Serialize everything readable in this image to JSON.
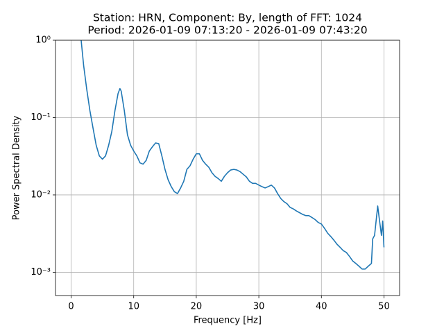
{
  "chart_data": {
    "type": "line",
    "title": "Station: HRN, Component: By, length of FFT: 1024",
    "subtitle": "Period: 2026-01-09 07:13:20 - 2026-01-09 07:43:20",
    "xlabel": "Frequency [Hz]",
    "ylabel": "Power Spectral Density",
    "x": [
      1.6,
      2,
      2.5,
      3,
      3.5,
      4,
      4.5,
      5,
      5.5,
      6,
      6.5,
      7,
      7.5,
      7.8,
      8,
      8.5,
      9,
      9.5,
      10,
      10.5,
      11,
      11.5,
      12,
      12.5,
      13,
      13.5,
      14,
      14.5,
      15,
      15.5,
      16,
      16.5,
      17,
      17.5,
      18,
      18.5,
      19,
      19.5,
      20,
      20.5,
      21,
      21.5,
      22,
      22.5,
      23,
      23.5,
      24,
      24.5,
      25,
      25.5,
      26,
      26.5,
      27,
      27.5,
      28,
      28.5,
      29,
      29.5,
      30,
      30.5,
      31,
      31.5,
      32,
      32.5,
      33,
      33.5,
      34,
      34.5,
      35,
      35.5,
      36,
      36.5,
      37,
      37.5,
      38,
      38.5,
      39,
      39.5,
      40,
      40.5,
      41,
      41.5,
      42,
      42.5,
      43,
      43.5,
      44,
      44.5,
      45,
      45.5,
      46,
      46.5,
      47,
      47.5,
      48,
      48.2,
      48.5,
      49,
      49.3,
      49.6,
      49.8,
      50
    ],
    "values": [
      1.0,
      0.47,
      0.23,
      0.123,
      0.073,
      0.044,
      0.032,
      0.029,
      0.032,
      0.044,
      0.066,
      0.123,
      0.205,
      0.237,
      0.22,
      0.123,
      0.06,
      0.044,
      0.037,
      0.032,
      0.026,
      0.025,
      0.028,
      0.037,
      0.042,
      0.047,
      0.046,
      0.032,
      0.0214,
      0.0157,
      0.0128,
      0.011,
      0.0104,
      0.0123,
      0.015,
      0.0214,
      0.0238,
      0.029,
      0.034,
      0.034,
      0.028,
      0.025,
      0.0228,
      0.0194,
      0.0174,
      0.0163,
      0.015,
      0.0174,
      0.0194,
      0.021,
      0.0214,
      0.021,
      0.02,
      0.0185,
      0.0171,
      0.015,
      0.0141,
      0.0141,
      0.0134,
      0.0128,
      0.0123,
      0.0128,
      0.0134,
      0.0123,
      0.0104,
      0.009,
      0.0082,
      0.0077,
      0.0069,
      0.0066,
      0.0062,
      0.0059,
      0.0056,
      0.0054,
      0.0054,
      0.0051,
      0.0048,
      0.0044,
      0.0042,
      0.0037,
      0.0032,
      0.0029,
      0.0026,
      0.0023,
      0.0021,
      0.0019,
      0.0018,
      0.0016,
      0.0014,
      0.0013,
      0.0012,
      0.0011,
      0.0011,
      0.0012,
      0.0013,
      0.0027,
      0.003,
      0.0072,
      0.0046,
      0.003,
      0.0046,
      0.0021
    ],
    "color": "#1f77b4",
    "xlim": [
      -2.5,
      52.5
    ],
    "xticks": [
      0,
      10,
      20,
      30,
      40,
      50
    ],
    "ylim": [
      0.0005,
      1
    ],
    "yscale": "log",
    "yticks": [
      {
        "value": 0.001,
        "label": "10⁻³"
      },
      {
        "value": 0.01,
        "label": "10⁻²"
      },
      {
        "value": 0.1,
        "label": "10⁻¹"
      },
      {
        "value": 1,
        "label": "10⁰"
      }
    ],
    "grid": true
  }
}
